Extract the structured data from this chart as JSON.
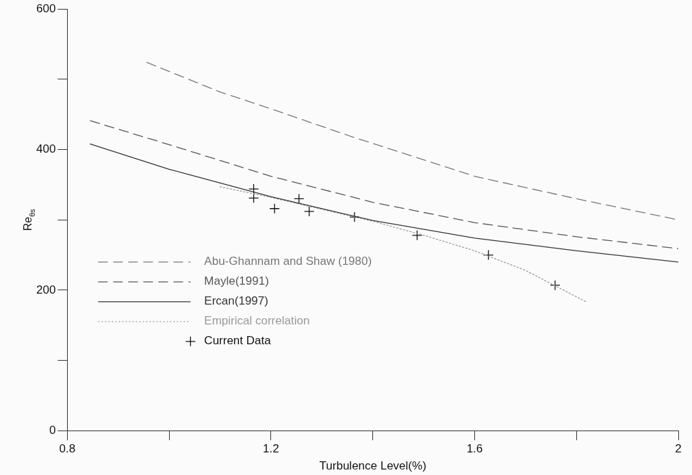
{
  "chart_data": {
    "type": "line",
    "xlabel": "Turbulence Level(%)",
    "ylabel": "Re$_{θs}$",
    "xlim": [
      0.8,
      2
    ],
    "xticks": [
      0.8,
      {
        "value": 1.0,
        "label": null
      },
      1.2,
      {
        "value": 1.4,
        "label": null
      },
      1.6,
      {
        "value": 1.8,
        "label": null
      },
      2
    ],
    "ylim": [
      0,
      600
    ],
    "yticks": [
      0,
      {
        "value": 100,
        "label": null
      },
      200,
      {
        "value": 300,
        "label": null
      },
      400,
      {
        "value": 500,
        "label": null
      },
      600
    ],
    "grid": false,
    "legend": "left",
    "marker": "none",
    "series": [
      {
        "name": "Abu-Ghannam and Shaw (1980)",
        "color": "#777777",
        "line_style": "dashed",
        "x": [
          0.956,
          1.1,
          1.2,
          1.36,
          1.6,
          1.8,
          2.0
        ],
        "values": [
          524,
          482,
          458,
          418,
          362,
          330,
          300
        ]
      },
      {
        "name": "Mayle(1991)",
        "color": "#555555",
        "line_style": "dashed",
        "x": [
          0.845,
          1.0,
          1.2,
          1.4,
          1.6,
          1.8,
          2.0
        ],
        "values": [
          441,
          407,
          362,
          325,
          296,
          276,
          259
        ]
      },
      {
        "name": "Ercan(1997)",
        "color": "#333333",
        "line_style": "solid",
        "x": [
          0.845,
          1.0,
          1.2,
          1.4,
          1.6,
          1.8,
          2.0
        ],
        "values": [
          408,
          372,
          333,
          299,
          274,
          256,
          240
        ]
      },
      {
        "name": "Empirical correlation",
        "color": "#999999",
        "line_style": "dotted",
        "x": [
          1.1,
          1.2,
          1.3,
          1.4,
          1.5,
          1.6,
          1.7,
          1.82
        ],
        "values": [
          347,
          332,
          315,
          298,
          278,
          256,
          228,
          183
        ]
      },
      {
        "name": "Current Data",
        "color": "#111111",
        "type": "scatter",
        "marker": "cross",
        "x": [
          1.166,
          1.166,
          1.207,
          1.255,
          1.275,
          1.364,
          1.487,
          1.627,
          1.758
        ],
        "values": [
          344,
          331,
          316,
          330,
          312,
          304,
          278,
          250,
          207
        ]
      }
    ]
  }
}
